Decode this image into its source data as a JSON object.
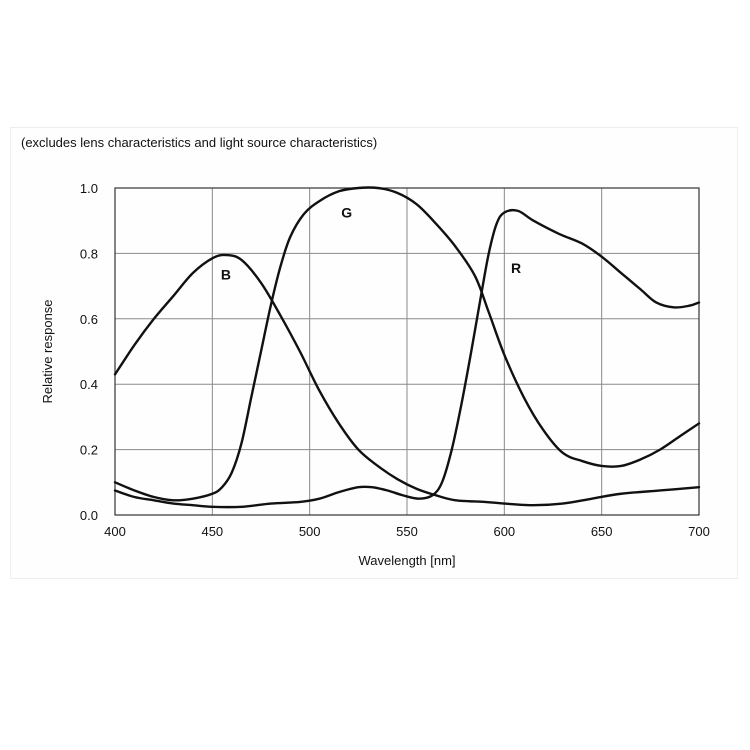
{
  "note": "(excludes lens characteristics and light source characteristics)",
  "chart_data": {
    "type": "line",
    "title": "",
    "xlabel": "Wavelength [nm]",
    "ylabel": "Relative response",
    "xlim": [
      400,
      700
    ],
    "ylim": [
      0,
      1.0
    ],
    "x_ticks": [
      "400",
      "450",
      "500",
      "550",
      "600",
      "650",
      "700"
    ],
    "y_ticks": [
      "0.0",
      "0.2",
      "0.4",
      "0.6",
      "0.8",
      "1.0"
    ],
    "grid": true,
    "series": [
      {
        "name": "B",
        "color": "#111111",
        "points": [
          [
            400,
            0.43
          ],
          [
            410,
            0.52
          ],
          [
            420,
            0.6
          ],
          [
            430,
            0.67
          ],
          [
            440,
            0.74
          ],
          [
            450,
            0.785
          ],
          [
            457,
            0.795
          ],
          [
            465,
            0.78
          ],
          [
            475,
            0.71
          ],
          [
            485,
            0.61
          ],
          [
            495,
            0.5
          ],
          [
            505,
            0.38
          ],
          [
            515,
            0.28
          ],
          [
            525,
            0.2
          ],
          [
            535,
            0.15
          ],
          [
            545,
            0.11
          ],
          [
            555,
            0.08
          ],
          [
            565,
            0.06
          ],
          [
            575,
            0.045
          ],
          [
            590,
            0.04
          ],
          [
            600,
            0.035
          ],
          [
            615,
            0.03
          ],
          [
            630,
            0.035
          ],
          [
            645,
            0.05
          ],
          [
            660,
            0.065
          ],
          [
            680,
            0.075
          ],
          [
            700,
            0.085
          ]
        ]
      },
      {
        "name": "G",
        "color": "#111111",
        "points": [
          [
            400,
            0.1
          ],
          [
            410,
            0.075
          ],
          [
            420,
            0.055
          ],
          [
            430,
            0.045
          ],
          [
            440,
            0.05
          ],
          [
            450,
            0.065
          ],
          [
            455,
            0.085
          ],
          [
            460,
            0.13
          ],
          [
            465,
            0.22
          ],
          [
            470,
            0.36
          ],
          [
            475,
            0.5
          ],
          [
            480,
            0.64
          ],
          [
            485,
            0.76
          ],
          [
            490,
            0.85
          ],
          [
            497,
            0.92
          ],
          [
            505,
            0.96
          ],
          [
            515,
            0.99
          ],
          [
            525,
            1.0
          ],
          [
            535,
            1.0
          ],
          [
            545,
            0.985
          ],
          [
            555,
            0.95
          ],
          [
            565,
            0.89
          ],
          [
            575,
            0.82
          ],
          [
            585,
            0.73
          ],
          [
            592,
            0.62
          ],
          [
            600,
            0.49
          ],
          [
            610,
            0.36
          ],
          [
            620,
            0.26
          ],
          [
            630,
            0.19
          ],
          [
            640,
            0.165
          ],
          [
            650,
            0.15
          ],
          [
            660,
            0.15
          ],
          [
            670,
            0.17
          ],
          [
            680,
            0.2
          ],
          [
            690,
            0.24
          ],
          [
            700,
            0.28
          ]
        ]
      },
      {
        "name": "R",
        "color": "#111111",
        "points": [
          [
            400,
            0.075
          ],
          [
            410,
            0.055
          ],
          [
            420,
            0.045
          ],
          [
            430,
            0.035
          ],
          [
            440,
            0.03
          ],
          [
            450,
            0.025
          ],
          [
            465,
            0.025
          ],
          [
            480,
            0.035
          ],
          [
            495,
            0.04
          ],
          [
            505,
            0.05
          ],
          [
            515,
            0.07
          ],
          [
            525,
            0.085
          ],
          [
            532,
            0.085
          ],
          [
            540,
            0.075
          ],
          [
            548,
            0.06
          ],
          [
            556,
            0.05
          ],
          [
            563,
            0.06
          ],
          [
            568,
            0.1
          ],
          [
            573,
            0.2
          ],
          [
            578,
            0.34
          ],
          [
            583,
            0.5
          ],
          [
            588,
            0.67
          ],
          [
            592,
            0.8
          ],
          [
            596,
            0.89
          ],
          [
            600,
            0.925
          ],
          [
            607,
            0.93
          ],
          [
            615,
            0.9
          ],
          [
            628,
            0.86
          ],
          [
            640,
            0.83
          ],
          [
            650,
            0.79
          ],
          [
            660,
            0.74
          ],
          [
            670,
            0.69
          ],
          [
            678,
            0.65
          ],
          [
            687,
            0.635
          ],
          [
            695,
            0.64
          ],
          [
            700,
            0.65
          ]
        ]
      }
    ],
    "series_label_positions": {
      "B": [
        457,
        0.72
      ],
      "G": [
        519,
        0.91
      ],
      "R": [
        606,
        0.74
      ]
    }
  }
}
